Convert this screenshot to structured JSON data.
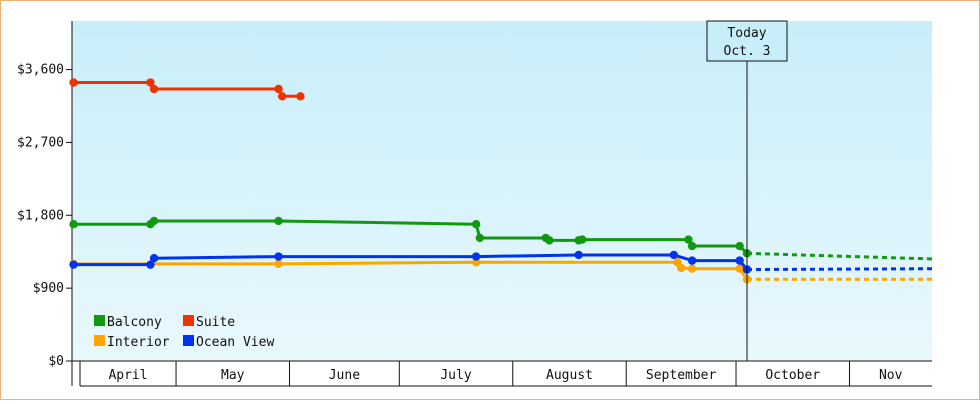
{
  "chart_data": {
    "type": "line",
    "ylim": [
      0,
      4200
    ],
    "y_ticks": [
      0,
      900,
      1800,
      2700,
      3600
    ],
    "y_tick_labels": [
      "$0",
      "$900",
      "$1,800",
      "$2,700",
      "$3,600"
    ],
    "x_range_days": [
      -184,
      51
    ],
    "months": [
      {
        "label": "April",
        "start": -186,
        "end": -156
      },
      {
        "label": "May",
        "start": -156,
        "end": -125
      },
      {
        "label": "June",
        "start": -125,
        "end": -95
      },
      {
        "label": "July",
        "start": -95,
        "end": -64
      },
      {
        "label": "August",
        "start": -64,
        "end": -33
      },
      {
        "label": "September",
        "start": -33,
        "end": -3
      },
      {
        "label": "October",
        "start": -3,
        "end": 28
      },
      {
        "label": "Nov",
        "start": 28,
        "end": 58
      }
    ],
    "today": {
      "line1": "Today",
      "line2": "Oct. 3",
      "x": 0
    },
    "grid": false,
    "legend_position": "bottom-left",
    "series": [
      {
        "name": "Balcony",
        "color": "#119911",
        "points": [
          [
            -184,
            1690
          ],
          [
            -163,
            1690
          ],
          [
            -162,
            1730
          ],
          [
            -128,
            1730
          ],
          [
            -74,
            1690
          ],
          [
            -73,
            1520
          ],
          [
            -55,
            1520
          ],
          [
            -54,
            1490
          ],
          [
            -46,
            1490
          ],
          [
            -45,
            1500
          ],
          [
            -16,
            1500
          ],
          [
            -15,
            1420
          ],
          [
            -2,
            1420
          ],
          [
            0,
            1330
          ]
        ],
        "forecast": [
          [
            0,
            1330
          ],
          [
            51,
            1260
          ]
        ]
      },
      {
        "name": "Suite",
        "color": "#ee3300",
        "points": [
          [
            -184,
            3440
          ],
          [
            -163,
            3440
          ],
          [
            -162,
            3360
          ],
          [
            -128,
            3360
          ],
          [
            -127,
            3270
          ],
          [
            -122,
            3270
          ]
        ],
        "forecast": []
      },
      {
        "name": "Interior",
        "color": "#ffa500",
        "points": [
          [
            -184,
            1200
          ],
          [
            -128,
            1200
          ],
          [
            -74,
            1220
          ],
          [
            -19,
            1220
          ],
          [
            -18,
            1150
          ],
          [
            -15,
            1140
          ],
          [
            -2,
            1140
          ],
          [
            0,
            1010
          ]
        ],
        "forecast": [
          [
            0,
            1010
          ],
          [
            51,
            1010
          ]
        ]
      },
      {
        "name": "Ocean View",
        "color": "#0033ee",
        "points": [
          [
            -184,
            1190
          ],
          [
            -163,
            1190
          ],
          [
            -162,
            1270
          ],
          [
            -128,
            1290
          ],
          [
            -74,
            1290
          ],
          [
            -46,
            1310
          ],
          [
            -20,
            1310
          ],
          [
            -15,
            1240
          ],
          [
            -2,
            1240
          ],
          [
            0,
            1130
          ]
        ],
        "forecast": [
          [
            0,
            1130
          ],
          [
            51,
            1140
          ]
        ]
      }
    ]
  }
}
